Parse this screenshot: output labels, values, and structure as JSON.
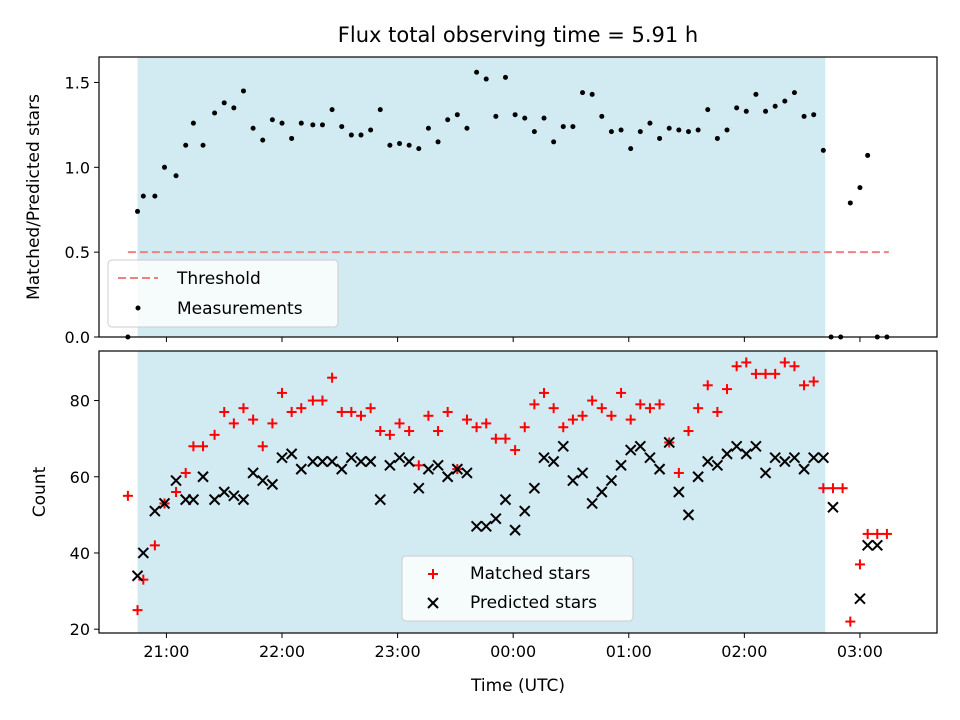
{
  "colors": {
    "shade": "#add8e6",
    "threshold": "#f08080",
    "matched": "#ff0000",
    "predicted": "#000000",
    "measurement": "#000000"
  },
  "chart_data": [
    {
      "type": "scatter",
      "title": "Flux total observing time = 5.91 h",
      "xlabel": "",
      "ylabel": "Matched/Predicted stars",
      "xlim": [
        "20:25",
        "03:40"
      ],
      "ylim": [
        0,
        1.65
      ],
      "yticks": [
        "0.0",
        "0.5",
        "1.0",
        "1.5"
      ],
      "shaded_interval": [
        "20:45",
        "02:42"
      ],
      "threshold": {
        "name": "Threshold",
        "value": 0.5,
        "x_range": [
          "20:40",
          "03:15"
        ],
        "style": "dashed"
      },
      "legend": {
        "position": "lower-left",
        "entries": [
          "Threshold",
          "Measurements"
        ]
      },
      "series": [
        {
          "name": "Measurements",
          "marker": "dot",
          "points": [
            [
              "20:40",
              0.0
            ],
            [
              "20:45",
              0.74
            ],
            [
              "20:48",
              0.83
            ],
            [
              "20:54",
              0.83
            ],
            [
              "20:59",
              1.0
            ],
            [
              "21:05",
              0.95
            ],
            [
              "21:10",
              1.13
            ],
            [
              "21:14",
              1.26
            ],
            [
              "21:19",
              1.13
            ],
            [
              "21:25",
              1.32
            ],
            [
              "21:30",
              1.38
            ],
            [
              "21:35",
              1.35
            ],
            [
              "21:40",
              1.45
            ],
            [
              "21:45",
              1.23
            ],
            [
              "21:50",
              1.16
            ],
            [
              "21:55",
              1.28
            ],
            [
              "22:00",
              1.26
            ],
            [
              "22:05",
              1.17
            ],
            [
              "22:10",
              1.26
            ],
            [
              "22:16",
              1.25
            ],
            [
              "22:21",
              1.25
            ],
            [
              "22:26",
              1.34
            ],
            [
              "22:31",
              1.24
            ],
            [
              "22:36",
              1.19
            ],
            [
              "22:41",
              1.19
            ],
            [
              "22:46",
              1.22
            ],
            [
              "22:51",
              1.34
            ],
            [
              "22:56",
              1.13
            ],
            [
              "23:01",
              1.14
            ],
            [
              "23:06",
              1.13
            ],
            [
              "23:11",
              1.11
            ],
            [
              "23:16",
              1.23
            ],
            [
              "23:21",
              1.15
            ],
            [
              "23:26",
              1.28
            ],
            [
              "23:31",
              1.31
            ],
            [
              "23:36",
              1.23
            ],
            [
              "23:41",
              1.56
            ],
            [
              "23:46",
              1.52
            ],
            [
              "23:51",
              1.3
            ],
            [
              "23:56",
              1.53
            ],
            [
              "00:01",
              1.31
            ],
            [
              "00:06",
              1.29
            ],
            [
              "00:11",
              1.21
            ],
            [
              "00:16",
              1.29
            ],
            [
              "00:21",
              1.15
            ],
            [
              "00:26",
              1.24
            ],
            [
              "00:31",
              1.24
            ],
            [
              "00:36",
              1.44
            ],
            [
              "00:41",
              1.43
            ],
            [
              "00:46",
              1.3
            ],
            [
              "00:51",
              1.21
            ],
            [
              "00:56",
              1.22
            ],
            [
              "01:01",
              1.11
            ],
            [
              "01:06",
              1.21
            ],
            [
              "01:11",
              1.26
            ],
            [
              "01:16",
              1.17
            ],
            [
              "01:21",
              1.23
            ],
            [
              "01:26",
              1.22
            ],
            [
              "01:31",
              1.21
            ],
            [
              "01:36",
              1.22
            ],
            [
              "01:41",
              1.34
            ],
            [
              "01:46",
              1.17
            ],
            [
              "01:51",
              1.22
            ],
            [
              "01:56",
              1.35
            ],
            [
              "02:01",
              1.33
            ],
            [
              "02:06",
              1.43
            ],
            [
              "02:11",
              1.33
            ],
            [
              "02:16",
              1.36
            ],
            [
              "02:21",
              1.39
            ],
            [
              "02:26",
              1.44
            ],
            [
              "02:31",
              1.3
            ],
            [
              "02:36",
              1.31
            ],
            [
              "02:41",
              1.1
            ],
            [
              "02:45",
              0.0
            ],
            [
              "02:50",
              0.0
            ],
            [
              "02:55",
              0.79
            ],
            [
              "03:00",
              0.88
            ],
            [
              "03:04",
              1.07
            ],
            [
              "03:09",
              0.0
            ],
            [
              "03:14",
              0.0
            ]
          ]
        }
      ]
    },
    {
      "type": "scatter",
      "title": "",
      "xlabel": "Time (UTC)",
      "ylabel": "Count",
      "xlim": [
        "20:25",
        "03:40"
      ],
      "ylim": [
        19,
        93
      ],
      "yticks": [
        "20",
        "40",
        "60",
        "80"
      ],
      "xticks": [
        "21:00",
        "22:00",
        "23:00",
        "00:00",
        "01:00",
        "02:00",
        "03:00"
      ],
      "shaded_interval": [
        "20:45",
        "02:42"
      ],
      "legend": {
        "position": "lower-center",
        "entries": [
          "Matched stars",
          "Predicted stars"
        ]
      },
      "series": [
        {
          "name": "Matched stars",
          "marker": "plus",
          "points": [
            [
              "20:40",
              55
            ],
            [
              "20:45",
              25
            ],
            [
              "20:48",
              33
            ],
            [
              "20:54",
              42
            ],
            [
              "20:59",
              53
            ],
            [
              "21:05",
              56
            ],
            [
              "21:10",
              61
            ],
            [
              "21:14",
              68
            ],
            [
              "21:19",
              68
            ],
            [
              "21:25",
              71
            ],
            [
              "21:30",
              77
            ],
            [
              "21:35",
              74
            ],
            [
              "21:40",
              78
            ],
            [
              "21:45",
              75
            ],
            [
              "21:50",
              68
            ],
            [
              "21:55",
              74
            ],
            [
              "22:00",
              82
            ],
            [
              "22:05",
              77
            ],
            [
              "22:10",
              78
            ],
            [
              "22:16",
              80
            ],
            [
              "22:21",
              80
            ],
            [
              "22:26",
              86
            ],
            [
              "22:31",
              77
            ],
            [
              "22:36",
              77
            ],
            [
              "22:41",
              76
            ],
            [
              "22:46",
              78
            ],
            [
              "22:51",
              72
            ],
            [
              "22:56",
              71
            ],
            [
              "23:01",
              74
            ],
            [
              "23:06",
              72
            ],
            [
              "23:11",
              63
            ],
            [
              "23:16",
              76
            ],
            [
              "23:21",
              72
            ],
            [
              "23:26",
              77
            ],
            [
              "23:31",
              62
            ],
            [
              "23:36",
              75
            ],
            [
              "23:41",
              73
            ],
            [
              "23:46",
              74
            ],
            [
              "23:51",
              70
            ],
            [
              "23:56",
              70
            ],
            [
              "00:01",
              67
            ],
            [
              "00:06",
              73
            ],
            [
              "00:11",
              79
            ],
            [
              "00:16",
              82
            ],
            [
              "00:21",
              78
            ],
            [
              "00:26",
              73
            ],
            [
              "00:31",
              75
            ],
            [
              "00:36",
              76
            ],
            [
              "00:41",
              80
            ],
            [
              "00:46",
              78
            ],
            [
              "00:51",
              76
            ],
            [
              "00:56",
              82
            ],
            [
              "01:01",
              75
            ],
            [
              "01:06",
              79
            ],
            [
              "01:11",
              78
            ],
            [
              "01:16",
              79
            ],
            [
              "01:21",
              69
            ],
            [
              "01:26",
              61
            ],
            [
              "01:31",
              72
            ],
            [
              "01:36",
              78
            ],
            [
              "01:41",
              84
            ],
            [
              "01:46",
              77
            ],
            [
              "01:51",
              83
            ],
            [
              "01:56",
              89
            ],
            [
              "02:01",
              90
            ],
            [
              "02:06",
              87
            ],
            [
              "02:11",
              87
            ],
            [
              "02:16",
              87
            ],
            [
              "02:21",
              90
            ],
            [
              "02:26",
              89
            ],
            [
              "02:31",
              84
            ],
            [
              "02:36",
              85
            ],
            [
              "02:41",
              57
            ],
            [
              "02:46",
              57
            ],
            [
              "02:51",
              57
            ],
            [
              "02:55",
              22
            ],
            [
              "03:00",
              37
            ],
            [
              "03:04",
              45
            ],
            [
              "03:09",
              45
            ],
            [
              "03:14",
              45
            ]
          ]
        },
        {
          "name": "Predicted stars",
          "marker": "x",
          "points": [
            [
              "20:45",
              34
            ],
            [
              "20:48",
              40
            ],
            [
              "20:54",
              51
            ],
            [
              "20:59",
              53
            ],
            [
              "21:05",
              59
            ],
            [
              "21:10",
              54
            ],
            [
              "21:14",
              54
            ],
            [
              "21:19",
              60
            ],
            [
              "21:25",
              54
            ],
            [
              "21:30",
              56
            ],
            [
              "21:35",
              55
            ],
            [
              "21:40",
              54
            ],
            [
              "21:45",
              61
            ],
            [
              "21:50",
              59
            ],
            [
              "21:55",
              58
            ],
            [
              "22:00",
              65
            ],
            [
              "22:05",
              66
            ],
            [
              "22:10",
              62
            ],
            [
              "22:16",
              64
            ],
            [
              "22:21",
              64
            ],
            [
              "22:26",
              64
            ],
            [
              "22:31",
              62
            ],
            [
              "22:36",
              65
            ],
            [
              "22:41",
              64
            ],
            [
              "22:46",
              64
            ],
            [
              "22:51",
              54
            ],
            [
              "22:56",
              63
            ],
            [
              "23:01",
              65
            ],
            [
              "23:06",
              64
            ],
            [
              "23:11",
              57
            ],
            [
              "23:16",
              62
            ],
            [
              "23:21",
              63
            ],
            [
              "23:26",
              60
            ],
            [
              "23:31",
              62
            ],
            [
              "23:36",
              61
            ],
            [
              "23:41",
              47
            ],
            [
              "23:46",
              47
            ],
            [
              "23:51",
              49
            ],
            [
              "23:56",
              54
            ],
            [
              "00:01",
              46
            ],
            [
              "00:06",
              51
            ],
            [
              "00:11",
              57
            ],
            [
              "00:16",
              65
            ],
            [
              "00:21",
              64
            ],
            [
              "00:26",
              68
            ],
            [
              "00:31",
              59
            ],
            [
              "00:36",
              61
            ],
            [
              "00:41",
              53
            ],
            [
              "00:46",
              56
            ],
            [
              "00:51",
              59
            ],
            [
              "00:56",
              63
            ],
            [
              "01:01",
              67
            ],
            [
              "01:06",
              68
            ],
            [
              "01:11",
              65
            ],
            [
              "01:16",
              62
            ],
            [
              "01:21",
              69
            ],
            [
              "01:26",
              56
            ],
            [
              "01:31",
              50
            ],
            [
              "01:36",
              60
            ],
            [
              "01:41",
              64
            ],
            [
              "01:46",
              63
            ],
            [
              "01:51",
              66
            ],
            [
              "01:56",
              68
            ],
            [
              "02:01",
              66
            ],
            [
              "02:06",
              68
            ],
            [
              "02:11",
              61
            ],
            [
              "02:16",
              65
            ],
            [
              "02:21",
              64
            ],
            [
              "02:26",
              65
            ],
            [
              "02:31",
              62
            ],
            [
              "02:36",
              65
            ],
            [
              "02:41",
              65
            ],
            [
              "02:46",
              52
            ],
            [
              "03:00",
              28
            ],
            [
              "03:04",
              42
            ],
            [
              "03:09",
              42
            ]
          ]
        }
      ]
    }
  ]
}
